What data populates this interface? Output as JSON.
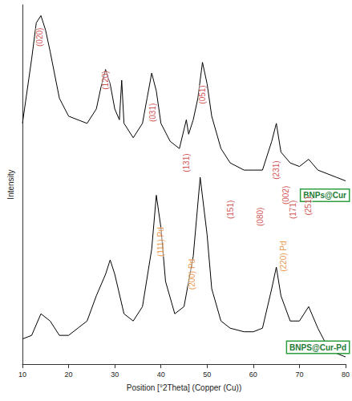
{
  "chart_data": {
    "type": "line",
    "x_label": "Position [°2Theta] (Copper (Cu))",
    "y_label": "Intensity",
    "xlim": [
      10,
      80
    ],
    "xticks": [
      10,
      20,
      30,
      40,
      50,
      60,
      70,
      80
    ],
    "ylim": [
      0,
      100
    ],
    "tick_labels": "x",
    "grid": false,
    "series": [
      {
        "name": "BNPs@Cur",
        "color": "#000000",
        "x": [
          10,
          12,
          13,
          14,
          15,
          16,
          18,
          20,
          22,
          24,
          26,
          27,
          28,
          29,
          30,
          31,
          31.5,
          32,
          34,
          36,
          37,
          38,
          39,
          40,
          42,
          44,
          45.5,
          46,
          47,
          48,
          49,
          50,
          51,
          53,
          55,
          58,
          60,
          62,
          64,
          65,
          66,
          68,
          70,
          72,
          74,
          76,
          78,
          80
        ],
        "values": [
          67,
          85,
          95,
          97,
          93,
          87,
          74,
          69,
          68,
          67,
          71,
          77,
          82,
          78,
          71,
          68,
          79,
          67,
          63,
          67,
          74,
          81,
          76,
          67,
          62,
          60,
          68,
          64,
          68,
          74,
          84,
          78,
          69,
          60,
          56,
          54,
          54,
          54,
          62,
          67,
          59,
          56,
          55,
          57,
          54,
          53,
          52,
          51
        ]
      },
      {
        "name": "BNPS@Cur-Pd",
        "color": "#000000",
        "x": [
          10,
          12,
          14,
          16,
          18,
          20,
          22,
          24,
          26,
          28,
          29,
          30,
          32,
          34,
          36,
          38,
          39,
          40,
          41,
          43,
          45,
          47,
          48.5,
          50,
          51,
          53,
          55,
          58,
          60,
          62,
          64,
          65,
          66,
          68,
          70,
          72,
          74,
          76,
          78,
          80
        ],
        "values": [
          7,
          8,
          14,
          12,
          8,
          8,
          10,
          12,
          19,
          25,
          29,
          25,
          14,
          12,
          16,
          32,
          47,
          38,
          23,
          14,
          16,
          30,
          52,
          36,
          21,
          12,
          10,
          9,
          9,
          10,
          21,
          27,
          19,
          12,
          12,
          16,
          10,
          5,
          3,
          2
        ]
      }
    ],
    "annotations": [
      {
        "text": "(020)",
        "x": 13.7,
        "y": 91,
        "color": "#c62828"
      },
      {
        "text": "(120)",
        "x": 28,
        "y": 79,
        "color": "#c62828"
      },
      {
        "text": "(031)",
        "x": 38.3,
        "y": 70,
        "color": "#c62828"
      },
      {
        "text": "(131)",
        "x": 45.5,
        "y": 56,
        "color": "#c62828"
      },
      {
        "text": "(051)",
        "x": 49,
        "y": 75,
        "color": "#c62828"
      },
      {
        "text": "(151)",
        "x": 55,
        "y": 43,
        "color": "#c62828"
      },
      {
        "text": "(080)",
        "x": 61.5,
        "y": 41,
        "color": "#c62828"
      },
      {
        "text": "(231)",
        "x": 65,
        "y": 54,
        "color": "#c62828"
      },
      {
        "text": "(002)",
        "x": 67,
        "y": 47,
        "color": "#c62828"
      },
      {
        "text": "(171)",
        "x": 68.7,
        "y": 43,
        "color": "#c62828"
      },
      {
        "text": "(251)",
        "x": 72,
        "y": 44,
        "color": "#c62828"
      },
      {
        "text": "(111) Pd",
        "x": 40,
        "y": 34,
        "color": "#e67e22"
      },
      {
        "text": "(200) Pd",
        "x": 46.7,
        "y": 25,
        "color": "#e67e22"
      },
      {
        "text": "(220) Pd",
        "x": 66.5,
        "y": 30,
        "color": "#e67e22"
      }
    ]
  }
}
